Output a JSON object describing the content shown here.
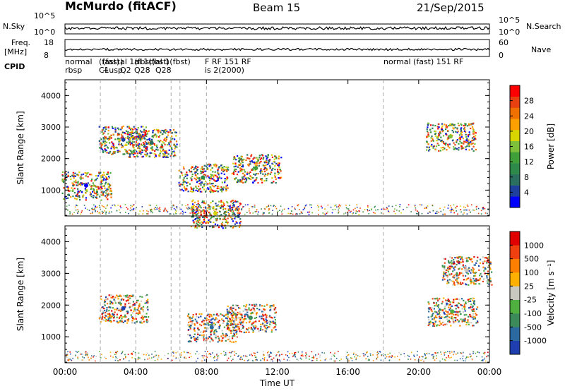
{
  "header": {
    "station": "McMurdo (fitACF)",
    "beam": "Beam 15",
    "date": "21/Sep/2015"
  },
  "top_panel": {
    "left_label": "N.Sky",
    "right_label": "N.Search",
    "right_ticks": [
      "10^5",
      "10^0"
    ],
    "left_ticks": [
      "10^5",
      "10^0"
    ]
  },
  "freq_panel": {
    "left_label_1": "Freq.",
    "left_label_2": "[MHz]",
    "left_ticks": [
      "18",
      "8"
    ],
    "right_label": "Nave",
    "right_ticks": [
      "60",
      "0"
    ]
  },
  "cpid": {
    "label": "CPID",
    "blocks": [
      {
        "line1": "normal",
        "line2": "rbsp"
      },
      {
        "line1": "(fast)",
        "line2": "C1"
      },
      {
        "line1": "(fast)",
        "line2": "+usp"
      },
      {
        "line1": "al 1(fbst)",
        "line2": "Q2"
      },
      {
        "line1": "al 1(fbst)",
        "line2": "Q28"
      },
      {
        "line1": "al 1(fbst)",
        "line2": "Q28"
      },
      {
        "line1": "F RF 151 RF",
        "line2": "is 2(2000)"
      },
      {
        "line1": "normal (fast) 151 RF",
        "line2": ""
      }
    ]
  },
  "chart_data": [
    {
      "type": "heatmap",
      "title": "",
      "xlabel": "",
      "ylabel": "Slant Range [km]",
      "xlim": [
        0,
        24
      ],
      "ylim": [
        180,
        4500
      ],
      "x_ticks": [
        "00:00",
        "04:00",
        "08:00",
        "12:00",
        "16:00",
        "20:00",
        "00:00"
      ],
      "y_ticks": [
        1000,
        2000,
        3000,
        4000
      ],
      "colorbar": {
        "label": "Power [dB]",
        "ticks": [
          "28",
          "24",
          "20",
          "16",
          "12",
          "8",
          "4"
        ],
        "colors": [
          "#0000ff",
          "#1f3f9f",
          "#2a6f60",
          "#2e8a4a",
          "#3fa03a",
          "#7ec03a",
          "#d8d400",
          "#ffa000",
          "#f07000",
          "#e84010",
          "#ff0000"
        ]
      },
      "series": [
        {
          "x": 1.2,
          "y": 1150,
          "value": 10
        },
        {
          "x": 3.3,
          "y": 2600,
          "value": 14
        },
        {
          "x": 4.9,
          "y": 2500,
          "value": 13
        },
        {
          "x": 7.8,
          "y": 1400,
          "value": 18
        },
        {
          "x": 10.8,
          "y": 1700,
          "value": 16
        },
        {
          "x": 21.8,
          "y": 2700,
          "value": 11
        },
        {
          "x": 8.5,
          "y": 260,
          "value": 22
        }
      ]
    },
    {
      "type": "heatmap",
      "title": "",
      "xlabel": "Time UT",
      "ylabel": "Slant Range [km]",
      "xlim": [
        0,
        24
      ],
      "ylim": [
        180,
        4500
      ],
      "x_ticks": [
        "00:00",
        "04:00",
        "08:00",
        "12:00",
        "16:00",
        "20:00",
        "00:00"
      ],
      "y_ticks": [
        1000,
        2000,
        3000,
        4000
      ],
      "colorbar": {
        "label": "Velocity [m s⁻¹]",
        "ticks": [
          "1000",
          "500",
          "100",
          "25",
          "-25",
          "-100",
          "-500",
          "-1000"
        ],
        "colors": [
          "#1f3fb0",
          "#2a6aa0",
          "#3a8a5a",
          "#4fb040",
          "#c8c8c0",
          "#ffb000",
          "#ff8000",
          "#f04010",
          "#e00000"
        ]
      },
      "series": [
        {
          "x": 3.3,
          "y": 1900,
          "value": -300
        },
        {
          "x": 8.3,
          "y": 1300,
          "value": 150
        },
        {
          "x": 10.5,
          "y": 1600,
          "value": 250
        },
        {
          "x": 21.9,
          "y": 1800,
          "value": -200
        },
        {
          "x": 22.7,
          "y": 3100,
          "value": 0
        }
      ]
    }
  ]
}
